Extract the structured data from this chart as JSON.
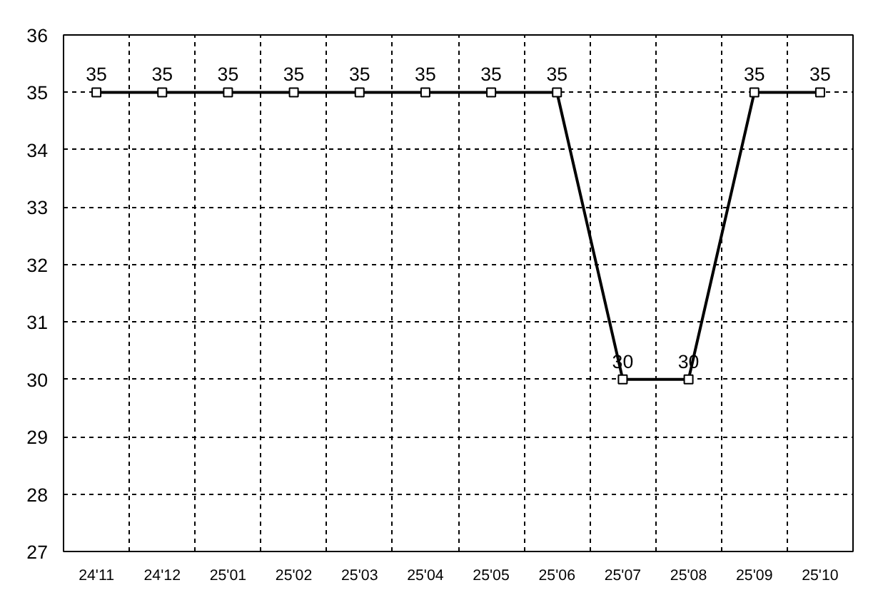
{
  "chart_data": {
    "type": "line",
    "categories": [
      "24'11",
      "24'12",
      "25'01",
      "25'02",
      "25'03",
      "25'04",
      "25'05",
      "25'06",
      "25'07",
      "25'08",
      "25'09",
      "25'10"
    ],
    "series": [
      {
        "color": "#000000",
        "values": [
          35,
          35,
          35,
          35,
          35,
          35,
          35,
          35,
          30,
          30,
          35,
          35
        ]
      }
    ],
    "ylim": [
      27,
      36
    ],
    "yticks": [
      27,
      28,
      29,
      30,
      31,
      32,
      33,
      34,
      35,
      36
    ],
    "grid": true,
    "marker": "square",
    "line_style": "solid",
    "data_labels": true
  }
}
